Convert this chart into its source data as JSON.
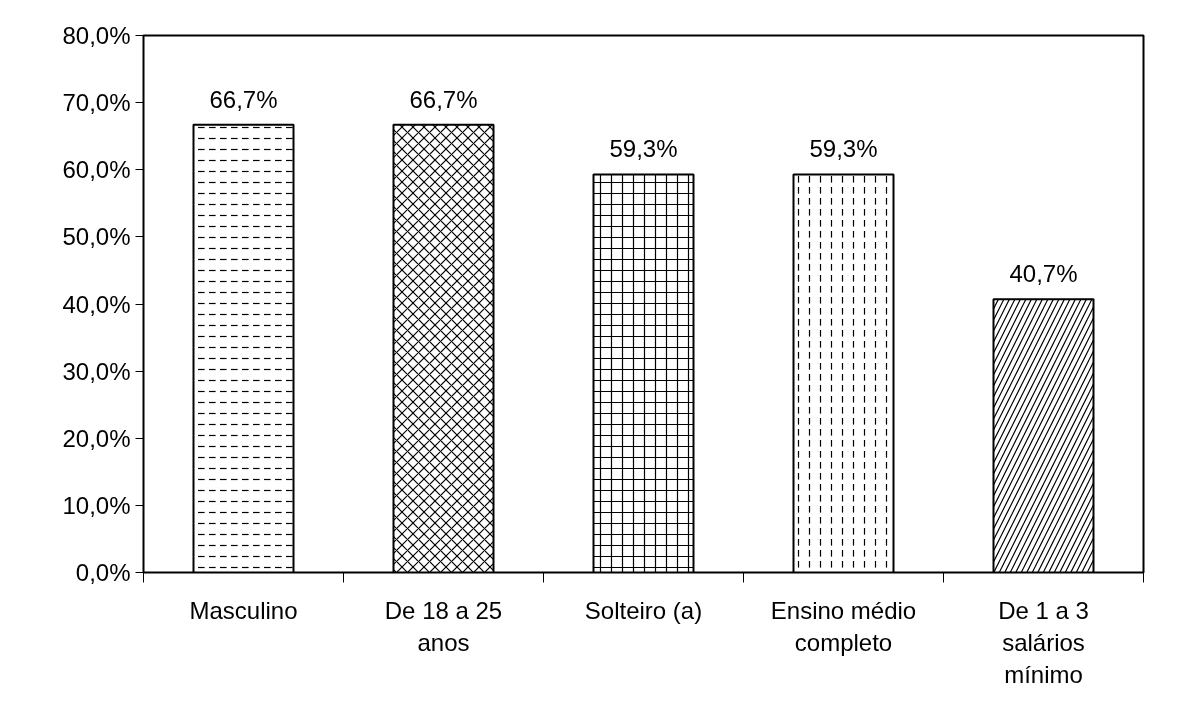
{
  "chart_data": {
    "type": "bar",
    "categories": [
      "Masculino",
      "De 18 a 25 anos",
      "Solteiro (a)",
      "Ensino médio completo",
      "De 1 a 3 salários mínimo"
    ],
    "values": [
      66.7,
      66.7,
      59.3,
      59.3,
      40.7
    ],
    "value_labels": [
      "66,7%",
      "66,7%",
      "59,3%",
      "59,3%",
      "40,7%"
    ],
    "colors": [
      "#ffffff",
      "#ffffff",
      "#ffffff",
      "#ffffff",
      "#ffffff"
    ],
    "ylim": [
      0,
      80
    ],
    "yticks": [
      {
        "value": 0,
        "label": "0,0%"
      },
      {
        "value": 10,
        "label": "10,0%"
      },
      {
        "value": 20,
        "label": "20,0%"
      },
      {
        "value": 30,
        "label": "30,0%"
      },
      {
        "value": 40,
        "label": "40,0%"
      },
      {
        "value": 50,
        "label": "50,0%"
      },
      {
        "value": 60,
        "label": "60,0%"
      },
      {
        "value": 70,
        "label": "70,0%"
      },
      {
        "value": 80,
        "label": "80,0%"
      }
    ],
    "grid": false
  }
}
